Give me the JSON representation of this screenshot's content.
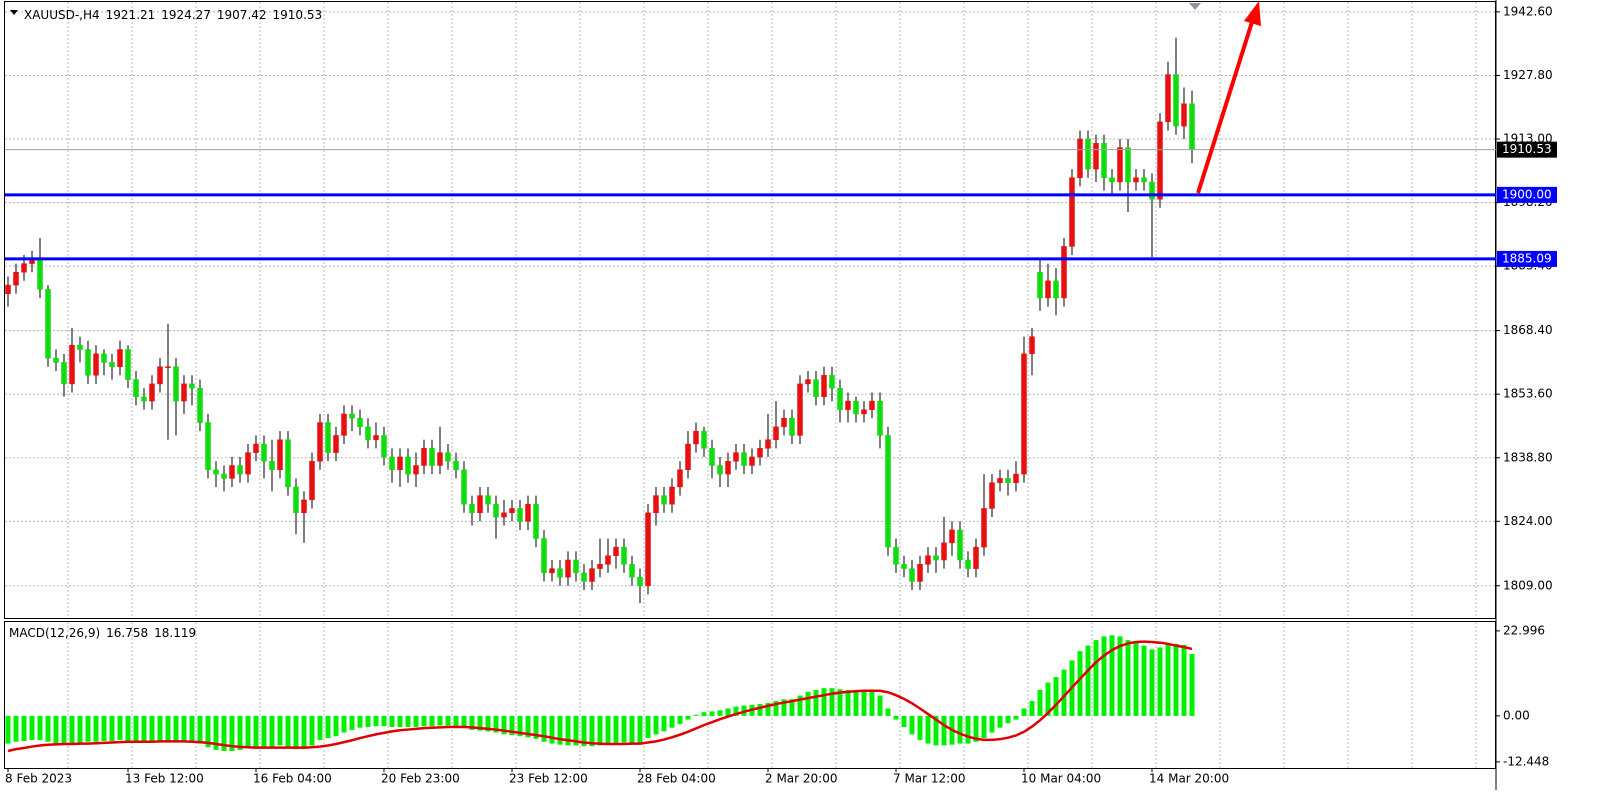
{
  "chart_data": [
    {
      "type": "candlestick",
      "symbol": "XAUUSD-,H4",
      "categories": [
        "8 Feb 2023",
        null,
        null,
        null,
        null,
        null,
        null,
        null,
        null,
        null,
        null,
        null,
        null,
        null,
        null,
        "13 Feb 12:00",
        null,
        null,
        null,
        null,
        null,
        null,
        null,
        null,
        null,
        null,
        null,
        null,
        null,
        null,
        null,
        "16 Feb 04:00",
        null,
        null,
        null,
        null,
        null,
        null,
        null,
        null,
        null,
        null,
        null,
        null,
        null,
        null,
        null,
        "20 Feb 23:00",
        null,
        null,
        null,
        null,
        null,
        null,
        null,
        null,
        null,
        null,
        null,
        null,
        null,
        null,
        null,
        "23 Feb 12:00",
        null,
        null,
        null,
        null,
        null,
        null,
        null,
        null,
        null,
        null,
        null,
        null,
        null,
        null,
        null,
        "28 Feb 04:00",
        null,
        null,
        null,
        null,
        null,
        null,
        null,
        null,
        null,
        null,
        null,
        null,
        null,
        null,
        null,
        "2 Mar 20:00",
        null,
        null,
        null,
        null,
        null,
        null,
        null,
        null,
        null,
        null,
        null,
        null,
        null,
        null,
        null,
        "7 Mar 12:00",
        null,
        null,
        null,
        null,
        null,
        null,
        null,
        null,
        null,
        null,
        null,
        null,
        null,
        null,
        null,
        "10 Mar 04:00",
        null,
        null,
        null,
        null,
        null,
        null,
        null,
        null,
        null,
        null,
        null,
        null,
        null,
        null,
        null,
        "14 Mar 20:00",
        null,
        null,
        null,
        null,
        null
      ],
      "open": [
        1877,
        1879,
        1882,
        1884,
        1885,
        1878,
        1862,
        1861,
        1856,
        1865,
        1864,
        1858,
        1863,
        1861,
        1860,
        1864,
        1857,
        1853,
        1852,
        1856,
        1860,
        1860,
        1852,
        1856,
        1855,
        1847,
        1836,
        1835,
        1834,
        1837,
        1835,
        1840,
        1842,
        1838,
        1836,
        1843,
        1832,
        1826,
        1829,
        1838,
        1847,
        1840,
        1844,
        1849,
        1848,
        1846,
        1843,
        1844,
        1839,
        1836,
        1839,
        1835,
        1837,
        1841,
        1837,
        1840,
        1838,
        1836,
        1828,
        1826,
        1830,
        1828,
        1825,
        1826,
        1827,
        1824,
        1828,
        1820,
        1812,
        1813,
        1811,
        1815,
        1812,
        1810,
        1813,
        1814,
        1816,
        1818,
        1814,
        1811,
        1809,
        1826,
        1830,
        1828,
        1832,
        1836,
        1842,
        1845,
        1841,
        1837,
        1835,
        1838,
        1840,
        1837,
        1839,
        1841,
        1843,
        1846,
        1848,
        1844,
        1856,
        1857,
        1853,
        1858,
        1855,
        1850,
        1852,
        1849,
        1850,
        1852,
        1844,
        1818,
        1814,
        1813,
        1810,
        1814,
        1816,
        1815,
        1819,
        1822,
        1815,
        1813,
        1818,
        1827,
        1833,
        1834,
        1833,
        1835,
        1863,
        1882,
        1876,
        1880,
        1876,
        1888,
        1904,
        1913,
        1906,
        1912,
        1904,
        1903,
        1911,
        1903,
        1904,
        1903,
        1899,
        1917,
        1928,
        1916,
        1921.21
      ],
      "high": [
        1881,
        1884,
        1886,
        1887,
        1890,
        1879,
        1864,
        1863,
        1869,
        1867,
        1866,
        1865,
        1864,
        1863,
        1866,
        1865,
        1859,
        1855,
        1858,
        1862,
        1870,
        1862,
        1858,
        1858,
        1857,
        1849,
        1838,
        1837,
        1839,
        1839,
        1842,
        1844,
        1844,
        1843,
        1845,
        1845,
        1834,
        1831,
        1840,
        1849,
        1849,
        1846,
        1851,
        1851,
        1850,
        1848,
        1847,
        1846,
        1841,
        1841,
        1841,
        1840,
        1843,
        1843,
        1846,
        1842,
        1840,
        1838,
        1830,
        1832,
        1832,
        1830,
        1829,
        1829,
        1829,
        1830,
        1830,
        1822,
        1815,
        1815,
        1817,
        1817,
        1814,
        1815,
        1820,
        1820,
        1820,
        1820,
        1816,
        1813,
        1828,
        1832,
        1832,
        1834,
        1838,
        1845,
        1847,
        1846,
        1843,
        1839,
        1840,
        1842,
        1842,
        1841,
        1843,
        1849,
        1852,
        1850,
        1850,
        1858,
        1859,
        1859,
        1860,
        1860,
        1857,
        1854,
        1853,
        1852,
        1854,
        1854,
        1846,
        1820,
        1816,
        1815,
        1816,
        1818,
        1818,
        1825,
        1824,
        1824,
        1817,
        1820,
        1835,
        1835,
        1836,
        1836,
        1838,
        1867,
        1869,
        1885,
        1884,
        1883,
        1890,
        1906,
        1915,
        1915,
        1914,
        1914,
        1906,
        1913,
        1913,
        1906,
        1906,
        1905,
        1919,
        1931,
        1936.6,
        1925,
        1924.27
      ],
      "low": [
        1874,
        1877,
        1880,
        1882,
        1876,
        1860,
        1859,
        1853,
        1854,
        1861,
        1856,
        1856,
        1858,
        1857,
        1858,
        1855,
        1851,
        1850,
        1850,
        1854,
        1843,
        1844,
        1849,
        1851,
        1845,
        1834,
        1832,
        1831,
        1832,
        1833,
        1833,
        1838,
        1834,
        1831,
        1834,
        1830,
        1821,
        1819,
        1827,
        1836,
        1838,
        1838,
        1842,
        1845,
        1844,
        1841,
        1841,
        1837,
        1833,
        1832,
        1833,
        1832,
        1835,
        1835,
        1835,
        1836,
        1834,
        1826,
        1823,
        1824,
        1826,
        1820,
        1823,
        1824,
        1822,
        1822,
        1818,
        1810,
        1810,
        1809,
        1809,
        1810,
        1808,
        1808,
        1811,
        1812,
        1813,
        1812,
        1809,
        1805,
        1807,
        1823,
        1826,
        1826,
        1830,
        1834,
        1840,
        1839,
        1834,
        1832,
        1832,
        1836,
        1835,
        1835,
        1837,
        1839,
        1841,
        1844,
        1842,
        1842,
        1854,
        1851,
        1851,
        1852,
        1847,
        1847,
        1847,
        1847,
        1848,
        1841,
        1816,
        1812,
        1811,
        1808,
        1808,
        1812,
        1812,
        1813,
        1816,
        1813,
        1811,
        1811,
        1816,
        1825,
        1831,
        1830,
        1831,
        1833,
        1858,
        1873,
        1874,
        1872,
        1874,
        1886,
        1902,
        1904,
        1903,
        1901,
        1900,
        1901,
        1896,
        1901,
        1901,
        1885.5,
        1897,
        1915,
        1914,
        1913,
        1907.42
      ],
      "close": [
        1879,
        1882,
        1884,
        1885,
        1878,
        1862,
        1861,
        1856,
        1865,
        1864,
        1858,
        1863,
        1861,
        1860,
        1864,
        1857,
        1853,
        1852,
        1856,
        1860,
        1860,
        1852,
        1856,
        1855,
        1847,
        1836,
        1835,
        1834,
        1837,
        1835,
        1840,
        1842,
        1838,
        1836,
        1843,
        1832,
        1826,
        1829,
        1838,
        1847,
        1840,
        1844,
        1849,
        1848,
        1846,
        1843,
        1844,
        1839,
        1836,
        1839,
        1835,
        1837,
        1841,
        1837,
        1840,
        1838,
        1836,
        1828,
        1826,
        1830,
        1828,
        1825,
        1826,
        1827,
        1824,
        1828,
        1820,
        1812,
        1813,
        1811,
        1815,
        1812,
        1810,
        1813,
        1814,
        1816,
        1818,
        1814,
        1811,
        1809,
        1826,
        1830,
        1828,
        1832,
        1836,
        1842,
        1845,
        1841,
        1837,
        1835,
        1838,
        1840,
        1837,
        1839,
        1841,
        1843,
        1846,
        1848,
        1844,
        1856,
        1857,
        1853,
        1858,
        1855,
        1850,
        1852,
        1849,
        1850,
        1852,
        1844,
        1818,
        1814,
        1813,
        1810,
        1814,
        1816,
        1815,
        1819,
        1822,
        1815,
        1813,
        1818,
        1827,
        1833,
        1834,
        1833,
        1835,
        1863,
        1867,
        1876,
        1880,
        1876,
        1888,
        1904,
        1913,
        1906,
        1912,
        1904,
        1903,
        1911,
        1903,
        1904,
        1903,
        1899,
        1917,
        1928,
        1916,
        1921.21,
        1910.53
      ],
      "up_color": "#e81010",
      "down_color": "#10dd10",
      "ylim": [
        1801.5,
        1944.9
      ],
      "yticks": [
        {
          "value": 1942.6,
          "label": "1942.60"
        },
        {
          "value": 1927.8,
          "label": "1927.80"
        },
        {
          "value": 1913,
          "label": "1913.00"
        },
        {
          "value": 1898.2,
          "label": "1898.20"
        },
        {
          "value": 1883.4,
          "label": "1883.40"
        },
        {
          "value": 1868.4,
          "label": "1868.40"
        },
        {
          "value": 1853.6,
          "label": "1853.60"
        },
        {
          "value": 1838.8,
          "label": "1838.80"
        },
        {
          "value": 1824,
          "label": "1824.00"
        },
        {
          "value": 1809,
          "label": "1809.00"
        }
      ],
      "grid": true,
      "levels": [
        {
          "value": 1900,
          "label": "1900.00"
        },
        1885.09
      ],
      "level_color": "#0000ff"
    },
    {
      "type": "macd",
      "title": "MACD(12,26,9)",
      "values": [
        -7.5,
        -7,
        -6.8,
        -6.5,
        -6.5,
        -7,
        -7.5,
        -7.8,
        -7.5,
        -7.2,
        -7,
        -7,
        -6.8,
        -6.8,
        -6.5,
        -6.8,
        -7,
        -7.2,
        -7,
        -6.8,
        -6.8,
        -7,
        -7,
        -7.2,
        -7.5,
        -8.5,
        -9.2,
        -9.5,
        -9.5,
        -9.2,
        -8.8,
        -8.5,
        -8.5,
        -8.5,
        -8,
        -8.5,
        -9,
        -9,
        -8,
        -6.5,
        -6,
        -5.5,
        -4.5,
        -3.8,
        -3.2,
        -3,
        -2.8,
        -2.8,
        -3,
        -3,
        -3,
        -3,
        -2.8,
        -2.8,
        -2.6,
        -2.6,
        -2.8,
        -3.2,
        -3.8,
        -4,
        -4.2,
        -4.5,
        -5,
        -5.2,
        -5.5,
        -5.8,
        -6.2,
        -7,
        -7.5,
        -7.8,
        -8,
        -8,
        -8.2,
        -8.2,
        -8,
        -7.8,
        -7.5,
        -7.2,
        -7.2,
        -7.5,
        -6,
        -5,
        -4.2,
        -3.2,
        -2.2,
        -1,
        0.3,
        1,
        1.2,
        1.5,
        2,
        2.5,
        2.8,
        3,
        3.2,
        3.5,
        4,
        4.5,
        4.5,
        5.5,
        6.5,
        7,
        7.5,
        7.5,
        7.2,
        7,
        6.8,
        6.5,
        6.5,
        5.5,
        2,
        -1,
        -3,
        -5,
        -6.5,
        -7.5,
        -8,
        -8,
        -7.8,
        -7.5,
        -7.5,
        -7,
        -6,
        -4.5,
        -3.2,
        -2,
        -1,
        2,
        4,
        7,
        9,
        10.5,
        12.5,
        15,
        17.5,
        19,
        20.5,
        21.5,
        21.8,
        21.5,
        20.5,
        20,
        19,
        18,
        18.5,
        19.5,
        19.5,
        19.2,
        16.758
      ],
      "signal": [
        -9.5,
        -9,
        -8.7,
        -8.3,
        -8,
        -7.8,
        -7.7,
        -7.6,
        -7.6,
        -7.5,
        -7.5,
        -7.4,
        -7.3,
        -7.2,
        -7.1,
        -7,
        -7,
        -7,
        -7,
        -6.9,
        -6.9,
        -6.9,
        -6.9,
        -7,
        -7.1,
        -7.3,
        -7.6,
        -7.9,
        -8.2,
        -8.4,
        -8.5,
        -8.6,
        -8.6,
        -8.6,
        -8.6,
        -8.6,
        -8.6,
        -8.6,
        -8.5,
        -8.3,
        -8,
        -7.6,
        -7.1,
        -6.6,
        -6,
        -5.5,
        -5,
        -4.6,
        -4.2,
        -3.9,
        -3.7,
        -3.5,
        -3.3,
        -3.2,
        -3.1,
        -3,
        -3,
        -3,
        -3.1,
        -3.3,
        -3.5,
        -3.7,
        -4,
        -4.3,
        -4.6,
        -4.9,
        -5.2,
        -5.5,
        -5.9,
        -6.3,
        -6.6,
        -6.9,
        -7.2,
        -7.4,
        -7.5,
        -7.6,
        -7.6,
        -7.6,
        -7.5,
        -7.5,
        -7.2,
        -6.9,
        -6.4,
        -5.8,
        -5.1,
        -4.3,
        -3.4,
        -2.5,
        -1.7,
        -0.9,
        -0.2,
        0.5,
        1.1,
        1.7,
        2.2,
        2.7,
        3.2,
        3.6,
        4,
        4.4,
        4.8,
        5.2,
        5.6,
        6,
        6.3,
        6.5,
        6.7,
        6.8,
        6.8,
        6.8,
        6.4,
        5.6,
        4.6,
        3.4,
        2,
        0.5,
        -1,
        -2.5,
        -3.8,
        -4.8,
        -5.6,
        -6.2,
        -6.5,
        -6.5,
        -6.3,
        -5.9,
        -5.3,
        -4.3,
        -2.9,
        -1.2,
        0.8,
        3,
        5.3,
        7.7,
        10,
        12.3,
        14.5,
        16.3,
        17.8,
        18.9,
        19.6,
        20,
        20.1,
        20,
        19.8,
        19.5,
        19,
        18.6,
        18.119
      ],
      "color": "#00f000",
      "signal_color": "#e00000",
      "ylim": [
        -14.1,
        25.4
      ],
      "yticks": [
        22.996,
        {
          "value": 0,
          "label": "0.00"
        },
        -12.448
      ]
    }
  ]
}
